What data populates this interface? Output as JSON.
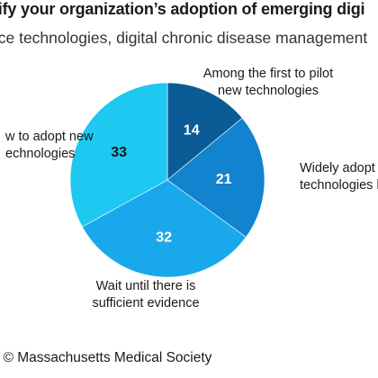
{
  "header": {
    "title": "sify your organization’s adoption of emerging digi",
    "subtitle": "nce technologies, digital chronic disease management"
  },
  "chart_data": {
    "type": "pie",
    "slices": [
      {
        "label_lines": [
          "Among the first to pilot",
          "new technologies"
        ],
        "value": 14,
        "color": "#0b5c96"
      },
      {
        "label_lines": [
          "Widely adopt n",
          "technologies befor"
        ],
        "value": 21,
        "color": "#1283cf"
      },
      {
        "label_lines": [
          "Wait until there is",
          "sufficient evidence"
        ],
        "value": 32,
        "color": "#1aa8ec"
      },
      {
        "label_lines": [
          "w to adopt new",
          "echnologies"
        ],
        "value": 33,
        "color": "#1ec8f0"
      }
    ]
  },
  "footer": {
    "copyright": ") © Massachusetts Medical Society"
  }
}
